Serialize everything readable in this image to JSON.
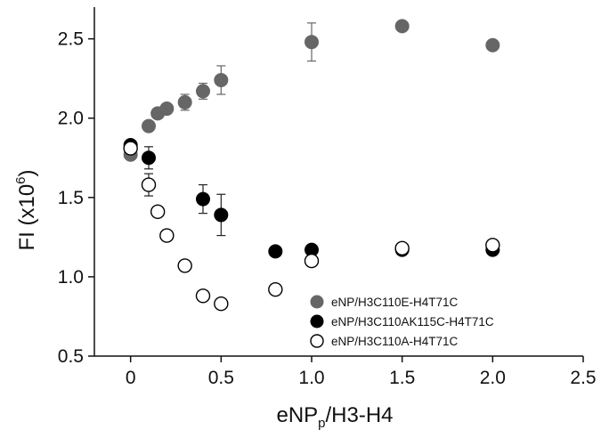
{
  "chart_data": {
    "type": "scatter",
    "xlabel": {
      "main": "eNP",
      "sub": "p",
      "rest": "/H3-H4"
    },
    "ylabel": {
      "main": "FI (x10",
      "sup": "6",
      "rest": ")"
    },
    "xlim": [
      -0.2,
      2.5
    ],
    "ylim": [
      0.5,
      2.7
    ],
    "xticks": [
      0,
      0.5,
      1.0,
      1.5,
      2.0,
      2.5
    ],
    "xtick_labels": [
      "0",
      "0.5",
      "1.0",
      "1.5",
      "2.0",
      "2.5"
    ],
    "yticks": [
      0.5,
      1.0,
      1.5,
      2.0,
      2.5
    ],
    "ytick_labels": [
      "0.5",
      "1.0",
      "1.5",
      "2.0",
      "2.5"
    ],
    "grid": false,
    "legend_position": "bottom-right",
    "series": [
      {
        "name": "eNP/H3C110E-H4T71C",
        "marker": "filled-gray",
        "color": "#666666",
        "x": [
          0,
          0.1,
          0.15,
          0.2,
          0.3,
          0.4,
          0.5,
          1.0,
          1.5,
          2.0
        ],
        "y": [
          1.77,
          1.95,
          2.03,
          2.06,
          2.1,
          2.17,
          2.24,
          2.48,
          2.58,
          2.46
        ],
        "err": [
          0,
          0,
          0,
          0,
          0.05,
          0.05,
          0.09,
          0.12,
          0,
          0
        ]
      },
      {
        "name": "eNP/H3C110AK115C-H4T71C",
        "marker": "filled-black",
        "color": "#000000",
        "x": [
          0,
          0.1,
          0.4,
          0.5,
          0.8,
          1.0,
          1.5,
          2.0
        ],
        "y": [
          1.83,
          1.75,
          1.49,
          1.39,
          1.16,
          1.17,
          1.17,
          1.17
        ],
        "err": [
          0,
          0.07,
          0.09,
          0.13,
          0,
          0,
          0,
          0
        ]
      },
      {
        "name": "eNP/H3C110A-H4T71C",
        "marker": "open-circle",
        "color": "#000000",
        "x": [
          0,
          0.1,
          0.15,
          0.2,
          0.3,
          0.4,
          0.5,
          0.8,
          1.0,
          1.5,
          2.0
        ],
        "y": [
          1.81,
          1.58,
          1.41,
          1.26,
          1.07,
          0.88,
          0.83,
          0.92,
          1.1,
          1.18,
          1.2
        ],
        "err": [
          0,
          0.07,
          0,
          0,
          0,
          0,
          0,
          0,
          0,
          0,
          0
        ]
      }
    ]
  }
}
